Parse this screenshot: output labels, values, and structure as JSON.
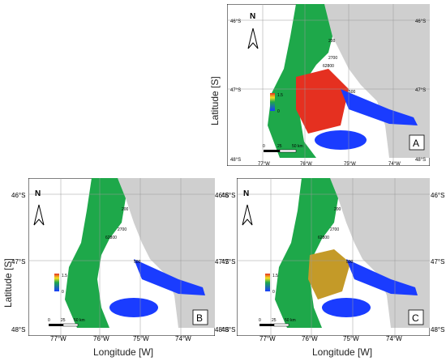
{
  "labels": {
    "latitude": "Latitude [S]",
    "longitude": "Longitude [W]",
    "north": "N",
    "colorbar_max": "1.5",
    "colorbar_min": "0",
    "scale_0": "0",
    "scale_25": "25",
    "scale_50": "50 km"
  },
  "lat_ticks": [
    "46°S",
    "47°S",
    "48°S"
  ],
  "lon_ticks": [
    "77°W",
    "76°W",
    "75°W",
    "74°W"
  ],
  "contour_labels": [
    "200",
    "2700",
    "62800",
    "500",
    "500"
  ],
  "panels": [
    {
      "id": "A",
      "label": "A"
    },
    {
      "id": "B",
      "label": "B"
    },
    {
      "id": "C",
      "label": "C"
    }
  ],
  "colors": {
    "land": "#cfcfcf",
    "water": "#ffffff",
    "low": "#1a3cff",
    "mid": "#1ea84a",
    "high": "#e53020"
  }
}
